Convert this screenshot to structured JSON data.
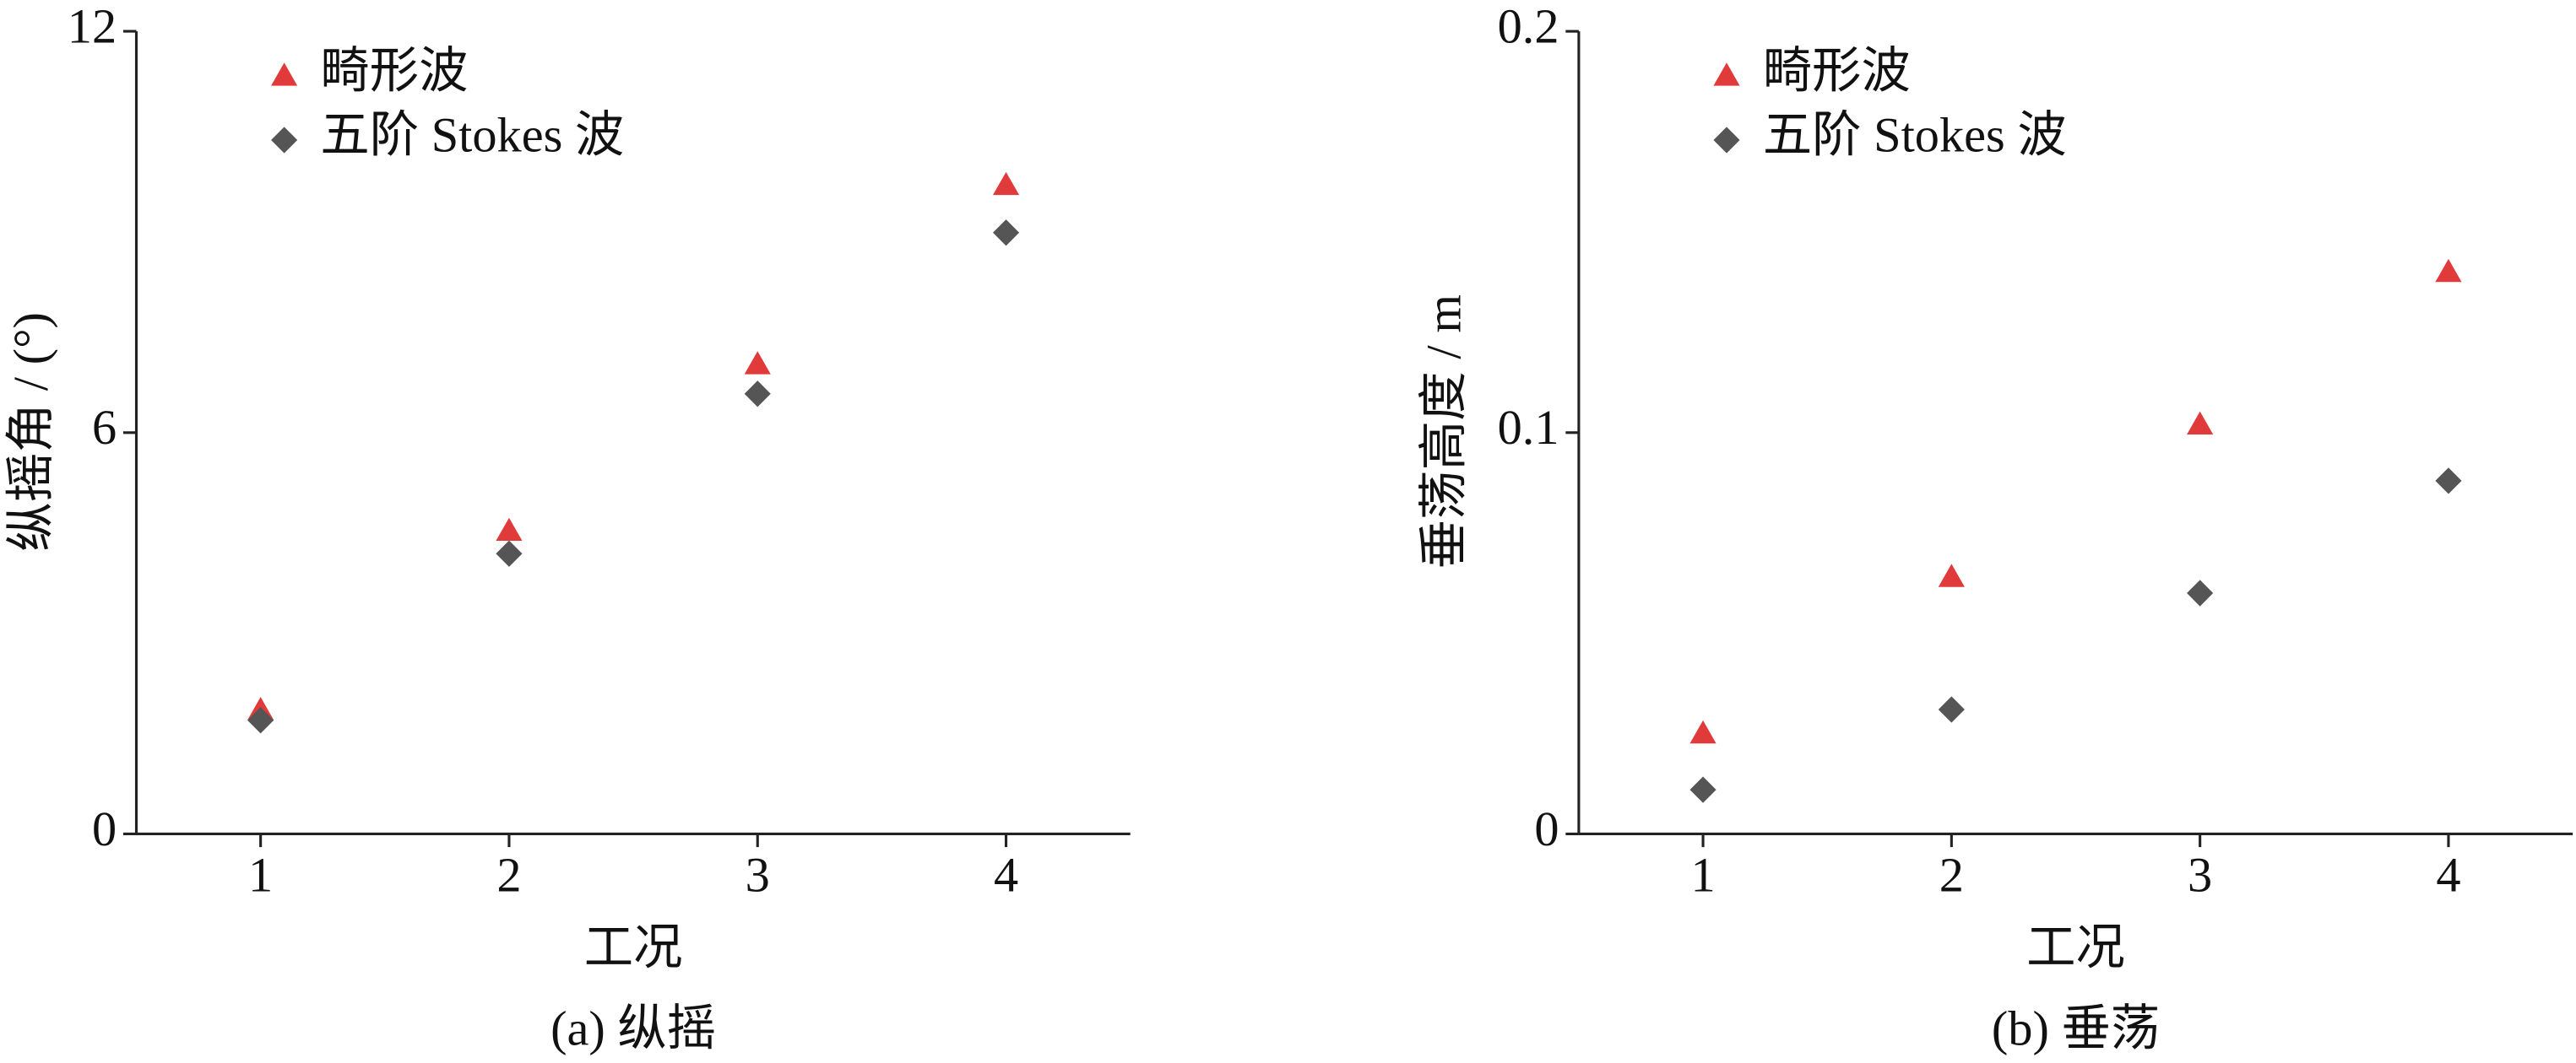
{
  "chart_data": [
    {
      "type": "scatter",
      "caption": "(a)  纵摇",
      "x_label": "工况",
      "y_label": "纵摇角 / (°)",
      "x": [
        1,
        2,
        3,
        4
      ],
      "xlim": [
        0.5,
        4.5
      ],
      "xticks": [
        1,
        2,
        3,
        4
      ],
      "ylim": [
        0,
        12
      ],
      "yticks": [
        0,
        6,
        12
      ],
      "series": [
        {
          "name": "畸形波",
          "color": "#e03a3a",
          "marker": "triangle",
          "values": [
            1.85,
            4.53,
            7.02,
            9.7
          ]
        },
        {
          "name": "五阶 Stokes 波",
          "color": "#555555",
          "marker": "diamond",
          "values": [
            1.7,
            4.19,
            6.58,
            8.99
          ]
        }
      ]
    },
    {
      "type": "scatter",
      "caption": "(b)  垂荡",
      "x_label": "工况",
      "y_label": "垂荡高度 / m",
      "x": [
        1,
        2,
        3,
        4
      ],
      "xlim": [
        0.5,
        4.5
      ],
      "xticks": [
        1,
        2,
        3,
        4
      ],
      "ylim": [
        0,
        0.2
      ],
      "yticks": [
        0,
        0.1,
        0.2
      ],
      "series": [
        {
          "name": "畸形波",
          "color": "#e03a3a",
          "marker": "triangle",
          "values": [
            0.025,
            0.064,
            0.102,
            0.14
          ]
        },
        {
          "name": "五阶 Stokes 波",
          "color": "#555555",
          "marker": "diamond",
          "values": [
            0.011,
            0.031,
            0.06,
            0.088
          ]
        }
      ]
    }
  ]
}
